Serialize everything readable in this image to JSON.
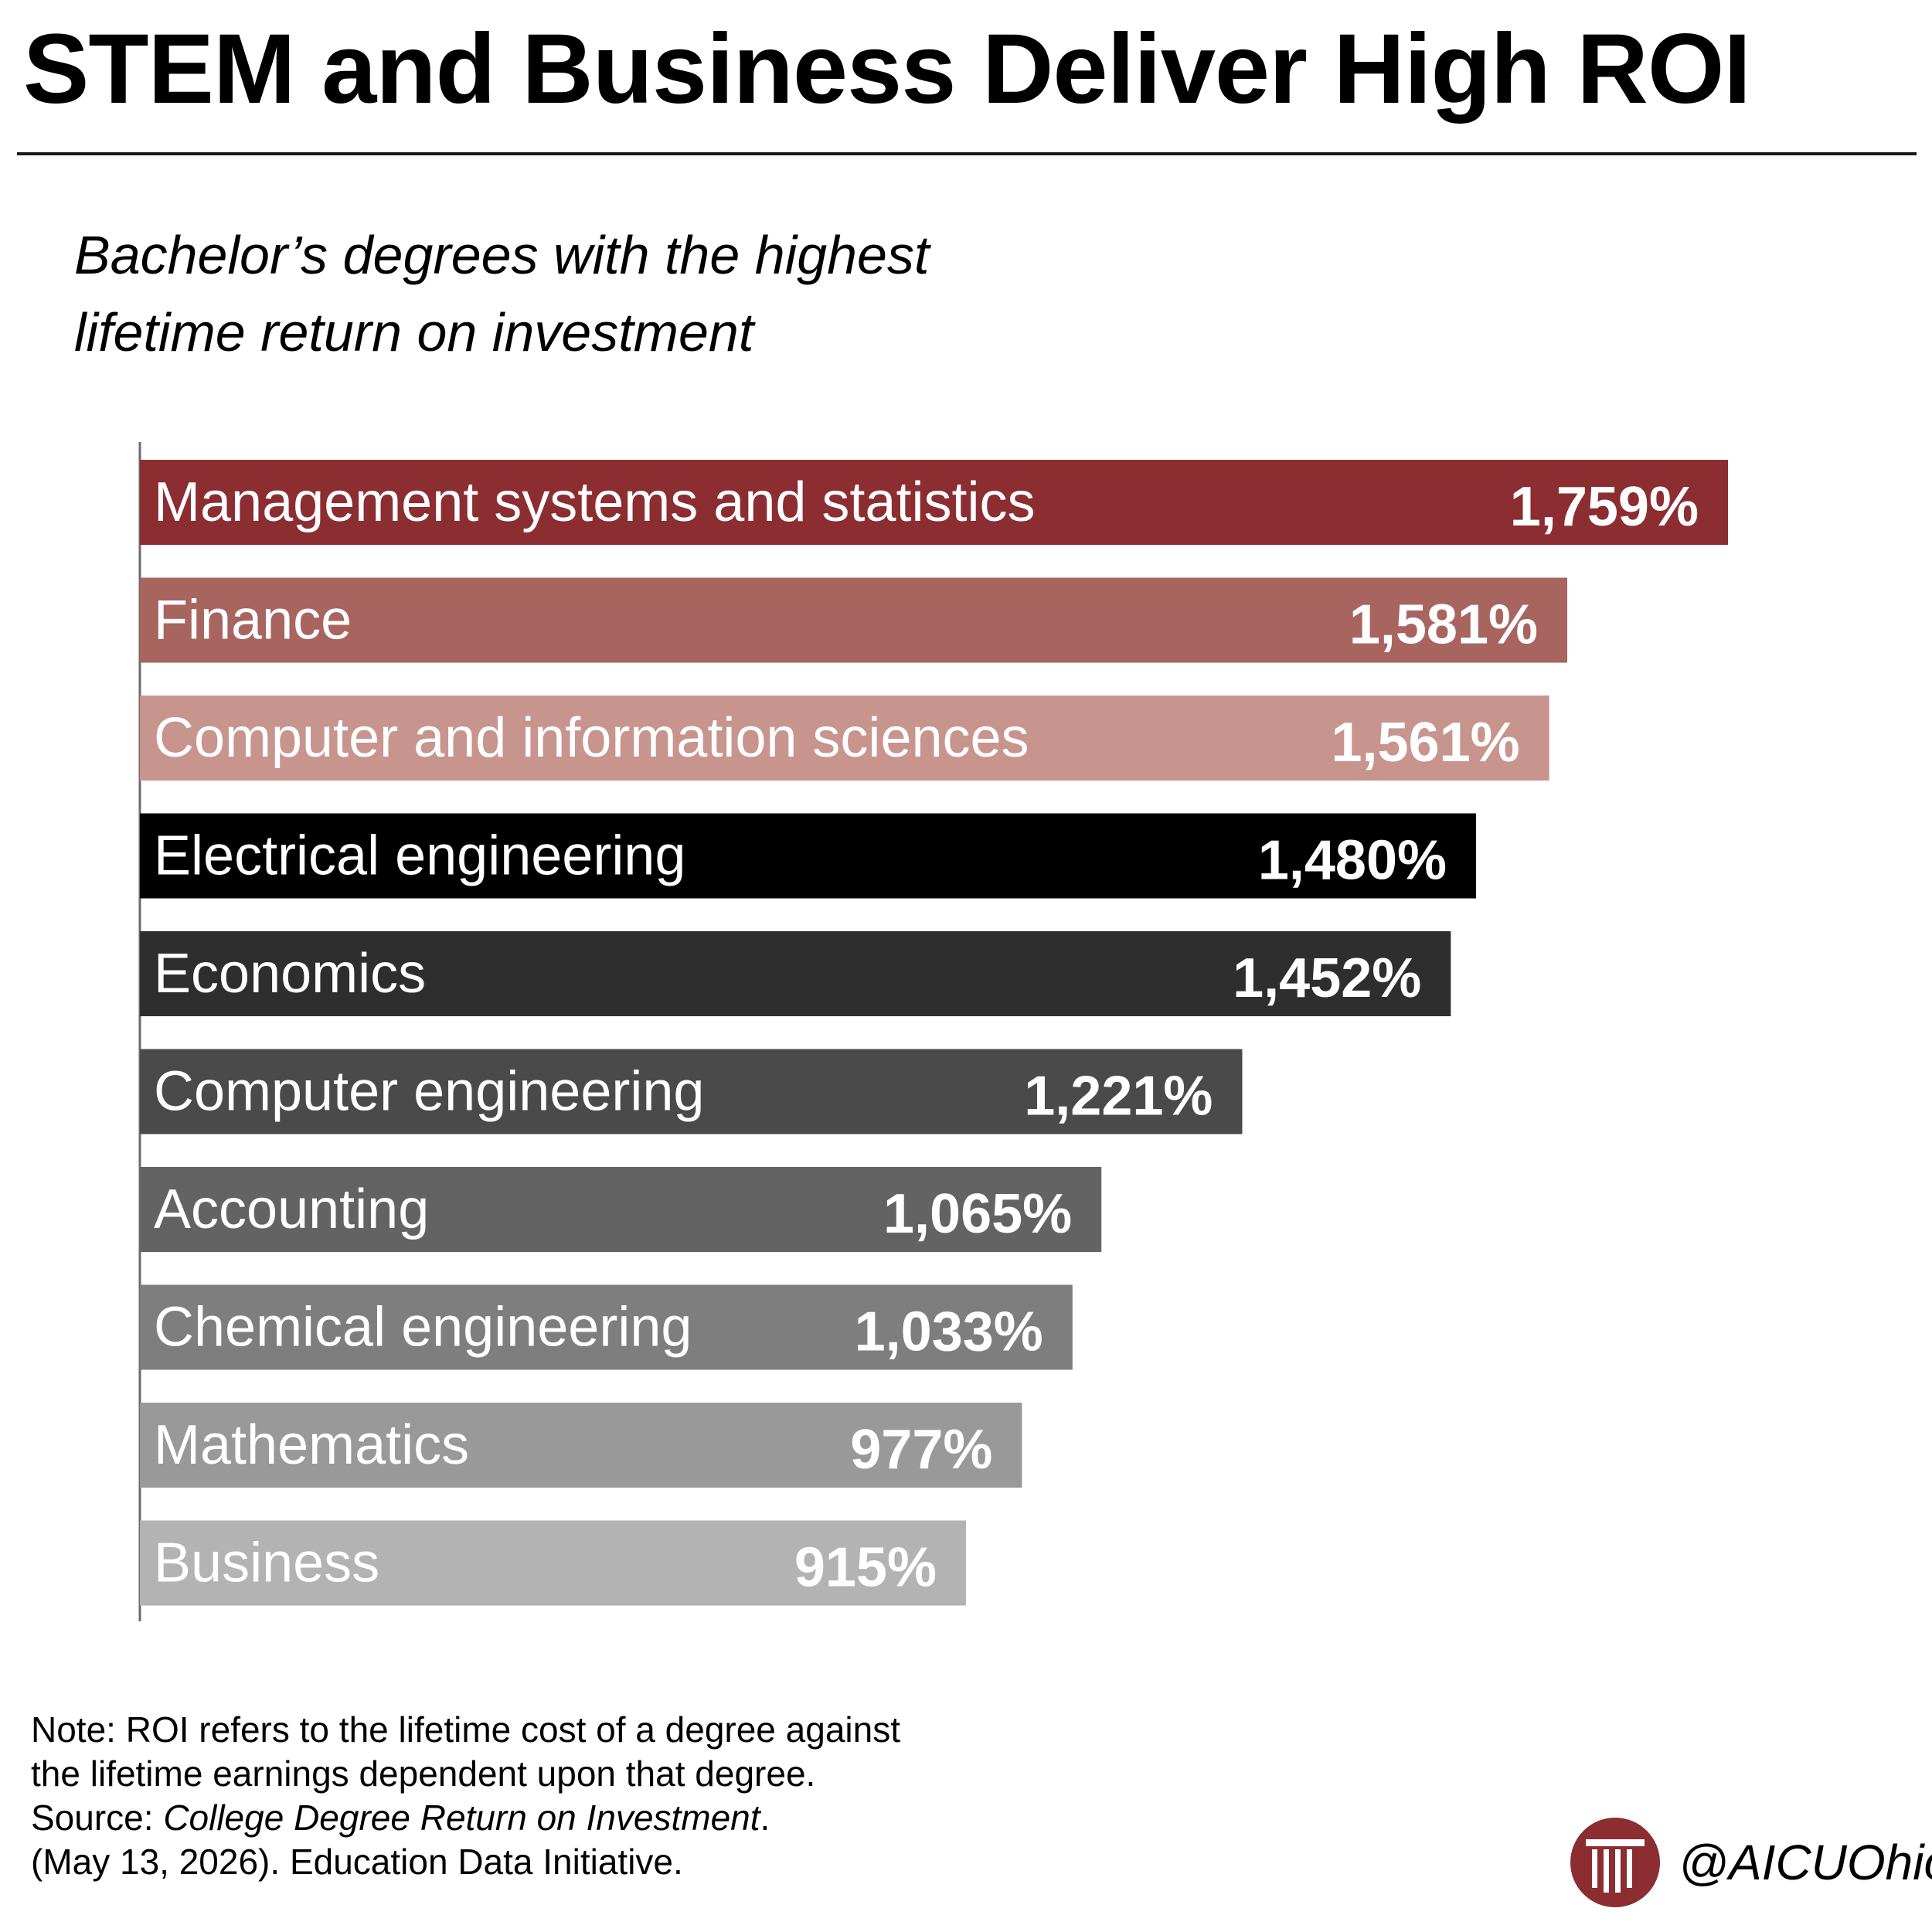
{
  "title": "STEM and Business Deliver High ROI",
  "subtitle_lines": [
    "Bachelor’s degrees with the highest",
    "lifetime return on investment"
  ],
  "chart_data": {
    "type": "bar",
    "orientation": "horizontal",
    "categories": [
      "Management systems and statistics",
      "Finance",
      "Computer and information sciences",
      "Electrical engineering",
      "Economics",
      "Computer engineering",
      "Accounting",
      "Chemical engineering",
      "Mathematics",
      "Business"
    ],
    "values": [
      1759,
      1581,
      1561,
      1480,
      1452,
      1221,
      1065,
      1033,
      977,
      915
    ],
    "value_labels": [
      "1,759%",
      "1,581%",
      "1,561%",
      "1,480%",
      "1,452%",
      "1,221%",
      "1,065%",
      "1,033%",
      "977%",
      "915%"
    ],
    "bar_colors": [
      "#8b2d31",
      "#a86560",
      "#c8948e",
      "#000000",
      "#2e2e2e",
      "#4a4a4a",
      "#636363",
      "#7e7e7e",
      "#999999",
      "#b3b3b3"
    ],
    "label_colors": [
      "#ffffff",
      "#ffffff",
      "#ffffff",
      "#ffffff",
      "#ffffff",
      "#ffffff",
      "#ffffff",
      "#ffffff",
      "#ffffff",
      "#ffffff"
    ],
    "xlim": [
      0,
      1759
    ],
    "grid": false,
    "legend": "none",
    "title": "",
    "xlabel": "",
    "ylabel": ""
  },
  "note": {
    "line1": "Note: ROI refers to the lifetime cost of a degree against",
    "line2": "the lifetime earnings dependent upon that degree.",
    "source_prefix": "Source: ",
    "source_title": "College Degree Return on Investment",
    "source_suffix": ".",
    "line4": "(May 13, 2026). Education Data Initiative."
  },
  "brand": {
    "handle": "@AICUOhio",
    "logo_icon": "column-logo-icon",
    "logo_color": "#8b2d31"
  }
}
